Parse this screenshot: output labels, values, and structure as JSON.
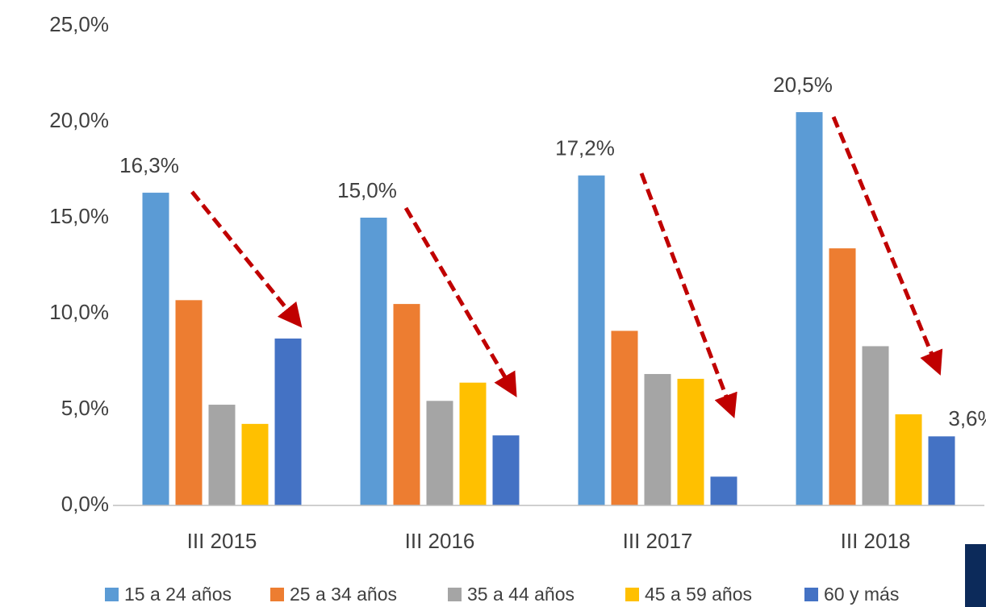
{
  "chart_data": {
    "type": "bar",
    "categories": [
      "III 2015",
      "III 2016",
      "III 2017",
      "III 2018"
    ],
    "series": [
      {
        "name": "15 a 24 años",
        "color": "#5b9bd5",
        "values": [
          16.3,
          15.0,
          17.2,
          20.5
        ],
        "value_labels": [
          "16,3%",
          "15,0%",
          "17,2%",
          "20,5%"
        ]
      },
      {
        "name": "25 a 34 años",
        "color": "#ed7d31",
        "values": [
          10.7,
          10.5,
          9.1,
          13.4
        ]
      },
      {
        "name": "35 a 44 años",
        "color": "#a5a5a5",
        "values": [
          5.25,
          5.45,
          6.85,
          8.3
        ]
      },
      {
        "name": "45 a 59 años",
        "color": "#ffc000",
        "values": [
          4.25,
          6.4,
          6.6,
          4.75
        ]
      },
      {
        "name": "60 y más",
        "color": "#4472c4",
        "values": [
          8.7,
          3.65,
          1.5,
          3.6
        ],
        "value_labels": [
          null,
          null,
          null,
          "3,6%"
        ]
      }
    ],
    "ylim": [
      0,
      25
    ],
    "yticks": [
      {
        "value": 0,
        "label": "0,0%"
      },
      {
        "value": 5,
        "label": "5,0%"
      },
      {
        "value": 10,
        "label": "10,0%"
      },
      {
        "value": 15,
        "label": "15,0%"
      },
      {
        "value": 20,
        "label": "20,0%"
      },
      {
        "value": 25,
        "label": "25,0%"
      }
    ],
    "grid": false,
    "legend": "bottom"
  }
}
